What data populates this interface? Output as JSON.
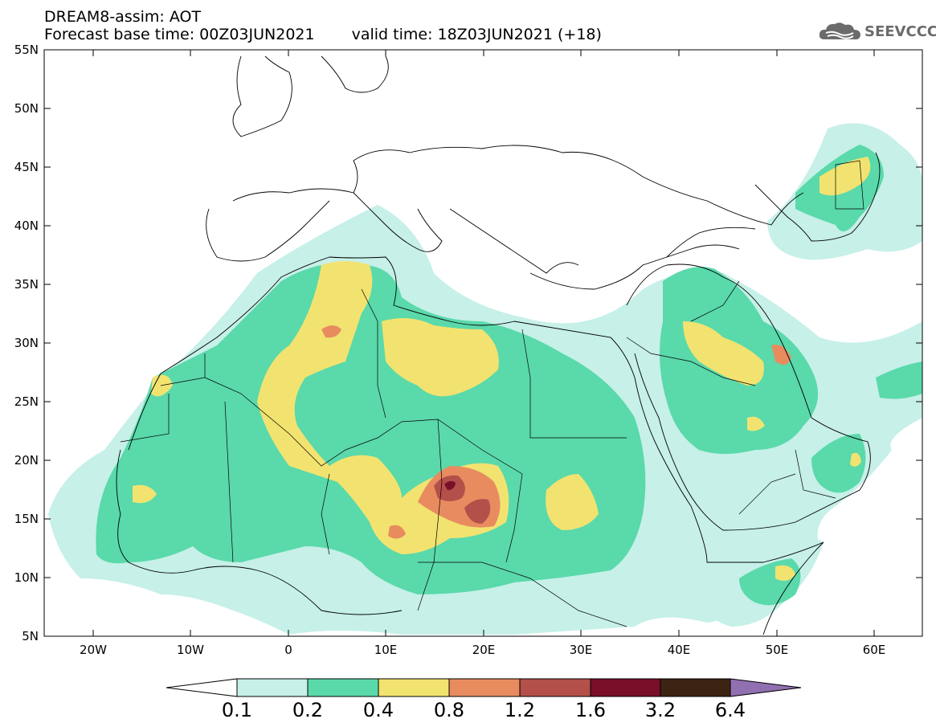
{
  "header": {
    "title": "DREAM8-assim: AOT",
    "base_time": "Forecast base time: 00Z03JUN2021",
    "valid_time": "valid time: 18Z03JUN2021 (+18)"
  },
  "logo": {
    "text": "SEEVCCC",
    "icon": "cloud-icon"
  },
  "axes": {
    "lat_ticks": [
      "55N",
      "50N",
      "45N",
      "40N",
      "35N",
      "30N",
      "25N",
      "20N",
      "15N",
      "10N",
      "5N"
    ],
    "lon_ticks": [
      "20W",
      "10W",
      "0",
      "10E",
      "20E",
      "30E",
      "40E",
      "50E",
      "60E"
    ]
  },
  "colorbar": {
    "labels": [
      "0.1",
      "0.2",
      "0.4",
      "0.8",
      "1.2",
      "1.6",
      "3.2",
      "6.4"
    ],
    "colors": [
      "#ffffff",
      "#c6f0e8",
      "#5ad9ab",
      "#f2e370",
      "#e88c60",
      "#b4504a",
      "#7a0f2a",
      "#3d2412",
      "#9070b0"
    ]
  },
  "chart_data": {
    "type": "map",
    "domain_lon": [
      -25,
      65
    ],
    "domain_lat": [
      5,
      55
    ],
    "variable": "AOT",
    "levels": [
      0.1,
      0.2,
      0.4,
      0.8,
      1.2,
      1.6,
      3.2,
      6.4
    ]
  }
}
